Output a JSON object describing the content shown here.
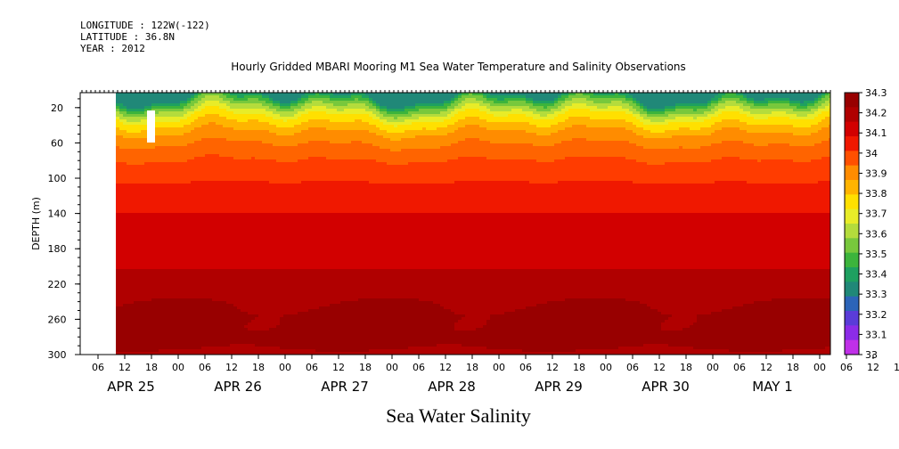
{
  "header": {
    "longitude": "LONGITUDE : 122W(-122)",
    "latitude": "LATITUDE : 36.8N",
    "year": "YEAR : 2012"
  },
  "chart_title": "Hourly Gridded MBARI Mooring M1 Sea Water Temperature and Salinity Observations",
  "variable_label": "Sea Water Salinity",
  "chart_data": {
    "type": "heatmap",
    "ylabel": "DEPTH (m)",
    "ylim": [
      300,
      3
    ],
    "y_ticks": [
      20,
      60,
      100,
      140,
      180,
      220,
      260,
      300
    ],
    "x_hour_ticks": [
      "06",
      "12",
      "18",
      "00",
      "06",
      "12",
      "18",
      "00",
      "06",
      "12",
      "18",
      "00",
      "06",
      "12",
      "18",
      "00",
      "06",
      "12",
      "18",
      "00",
      "06",
      "12",
      "18",
      "00",
      "06",
      "12",
      "18",
      "00",
      "06",
      "12",
      "18",
      "00"
    ],
    "x_dates": [
      "APR 25",
      "APR 26",
      "APR 27",
      "APR 28",
      "APR 29",
      "APR 30",
      "MAY  1"
    ],
    "colorbar_levels": [
      33,
      33.1,
      33.2,
      33.3,
      33.4,
      33.5,
      33.6,
      33.7,
      33.8,
      33.9,
      34,
      34.1,
      34.2,
      34.3
    ],
    "colorbar_labels": [
      "34.3",
      "34.2",
      "34.1",
      "34",
      "33.9",
      "33.8",
      "33.7",
      "33.6",
      "33.5",
      "33.4",
      "33.3",
      "33.2",
      "33.1",
      "33"
    ],
    "colors": [
      "#a00000",
      "#b80000",
      "#d80000",
      "#f01800",
      "#ff3000",
      "#ff5000",
      "#ff7000",
      "#ff9000",
      "#ffb000",
      "#ffd000",
      "#ffe800",
      "#f0f000",
      "#d8e800",
      "#b8e040",
      "#98d848",
      "#60c040",
      "#30a860",
      "#208878",
      "#3060c0",
      "#4040e0",
      "#6020e8",
      "#a030e8",
      "#d040f0"
    ],
    "depth_profile": [
      {
        "depth": 5,
        "value": 33.3
      },
      {
        "depth": 15,
        "value": 33.5
      },
      {
        "depth": 30,
        "value": 33.7
      },
      {
        "depth": 50,
        "value": 33.85
      },
      {
        "depth": 75,
        "value": 33.95
      },
      {
        "depth": 100,
        "value": 34.02
      },
      {
        "depth": 130,
        "value": 34.08
      },
      {
        "depth": 160,
        "value": 34.13
      },
      {
        "depth": 200,
        "value": 34.16
      },
      {
        "depth": 230,
        "value": 34.2
      },
      {
        "depth": 255,
        "value": 34.27
      },
      {
        "depth": 280,
        "value": 34.25
      },
      {
        "depth": 300,
        "value": 34.22
      }
    ]
  }
}
